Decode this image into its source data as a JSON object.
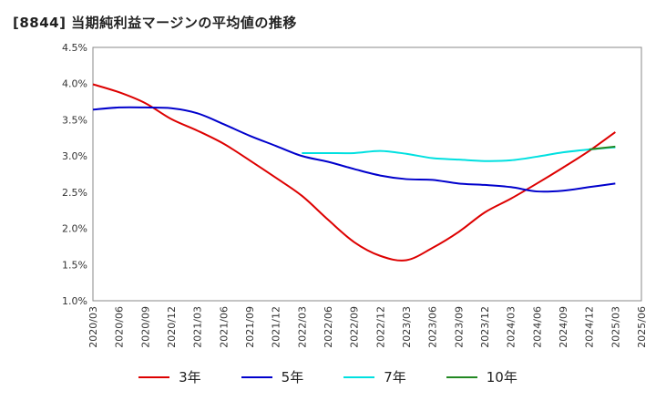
{
  "chart_data": {
    "type": "line",
    "title": "[8844]  当期純利益マージンの平均値の推移",
    "xlabel": "",
    "ylabel": "",
    "x_ticks": [
      "2020/03",
      "2020/06",
      "2020/09",
      "2020/12",
      "2021/03",
      "2021/06",
      "2021/09",
      "2021/12",
      "2022/03",
      "2022/06",
      "2022/09",
      "2022/12",
      "2023/03",
      "2023/06",
      "2023/09",
      "2023/12",
      "2024/03",
      "2024/06",
      "2024/09",
      "2024/12",
      "2025/03",
      "2025/06"
    ],
    "y_ticks": [
      "1.0%",
      "1.5%",
      "2.0%",
      "2.5%",
      "3.0%",
      "3.5%",
      "4.0%",
      "4.5%"
    ],
    "ylim": [
      1.0,
      4.5
    ],
    "grid": true,
    "legend_position": "bottom",
    "series": [
      {
        "name": "3年",
        "color": "#dd0000",
        "x": [
          "2020/03",
          "2020/06",
          "2020/09",
          "2020/12",
          "2021/03",
          "2021/06",
          "2021/09",
          "2021/12",
          "2022/03",
          "2022/06",
          "2022/09",
          "2022/12",
          "2023/03",
          "2023/06",
          "2023/09",
          "2023/12",
          "2024/03",
          "2024/06",
          "2024/09",
          "2024/12",
          "2025/03"
        ],
        "values": [
          3.99,
          3.88,
          3.73,
          3.51,
          3.35,
          3.17,
          2.94,
          2.7,
          2.45,
          2.12,
          1.81,
          1.62,
          1.56,
          1.73,
          1.95,
          2.22,
          2.41,
          2.62,
          2.84,
          3.07,
          3.33
        ]
      },
      {
        "name": "5年",
        "color": "#0000cc",
        "x": [
          "2020/03",
          "2020/06",
          "2020/09",
          "2020/12",
          "2021/03",
          "2021/06",
          "2021/09",
          "2021/12",
          "2022/03",
          "2022/06",
          "2022/09",
          "2022/12",
          "2023/03",
          "2023/06",
          "2023/09",
          "2023/12",
          "2024/03",
          "2024/06",
          "2024/09",
          "2024/12",
          "2025/03"
        ],
        "values": [
          3.64,
          3.67,
          3.67,
          3.66,
          3.59,
          3.44,
          3.28,
          3.14,
          3.0,
          2.92,
          2.82,
          2.73,
          2.68,
          2.67,
          2.62,
          2.6,
          2.57,
          2.51,
          2.52,
          2.57,
          2.62
        ]
      },
      {
        "name": "7年",
        "color": "#00e0e0",
        "x": [
          "2022/03",
          "2022/06",
          "2022/09",
          "2022/12",
          "2023/03",
          "2023/06",
          "2023/09",
          "2023/12",
          "2024/03",
          "2024/06",
          "2024/09",
          "2024/12",
          "2025/03"
        ],
        "values": [
          3.04,
          3.04,
          3.04,
          3.07,
          3.03,
          2.97,
          2.95,
          2.93,
          2.94,
          2.99,
          3.05,
          3.09,
          3.12
        ]
      },
      {
        "name": "10年",
        "color": "#228822",
        "x": [
          "2024/12",
          "2025/03"
        ],
        "values": [
          3.09,
          3.13
        ]
      }
    ]
  }
}
